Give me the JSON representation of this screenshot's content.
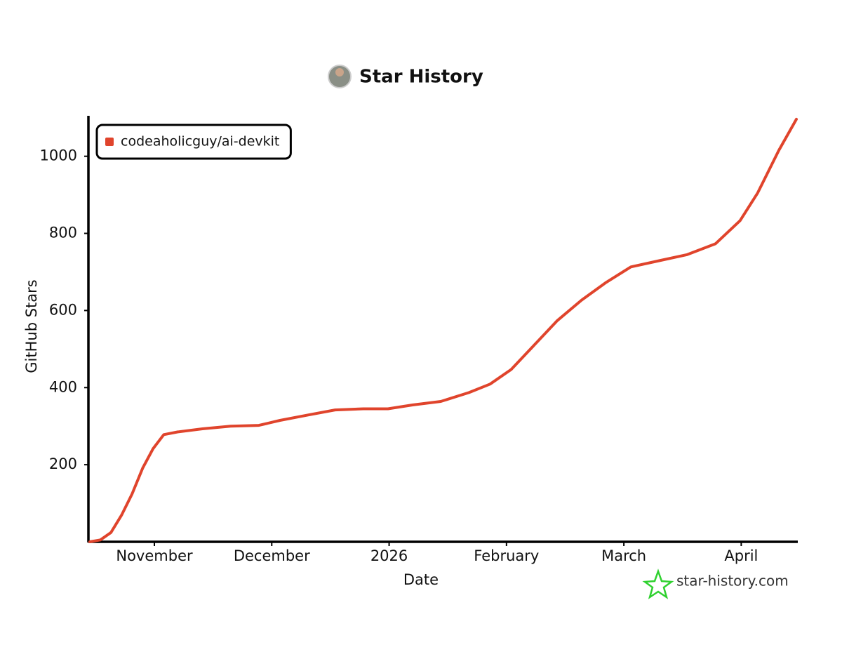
{
  "chart_data": {
    "type": "line",
    "title": "Star History",
    "x_label": "Date",
    "y_label": "GitHub Stars",
    "x": [
      10.45,
      10.54,
      10.63,
      10.72,
      10.81,
      10.9,
      10.99,
      11.08,
      11.2,
      11.41,
      11.65,
      11.89,
      12.07,
      12.31,
      12.54,
      12.78,
      12.99,
      13.2,
      13.44,
      13.68,
      13.86,
      14.04,
      14.22,
      14.43,
      14.64,
      14.85,
      15.06,
      15.3,
      15.54,
      15.78,
      15.99,
      16.14,
      16.32,
      16.47
    ],
    "series": [
      {
        "name": "codeaholicguy/ai-devkit",
        "color": "#e0442c",
        "values": [
          0,
          5,
          24,
          69,
          124,
          191,
          242,
          278,
          285,
          293,
          300,
          302,
          315,
          329,
          342,
          345,
          345,
          355,
          364,
          387,
          409,
          447,
          505,
          573,
          627,
          673,
          713,
          729,
          745,
          773,
          833,
          905,
          1015,
          1096
        ]
      }
    ],
    "xlim": [
      10.45,
      16.47
    ],
    "xticks": [
      {
        "value": 11,
        "label": "November"
      },
      {
        "value": 12,
        "label": "December"
      },
      {
        "value": 13,
        "label": "2026"
      },
      {
        "value": 14,
        "label": "February"
      },
      {
        "value": 15,
        "label": "March"
      },
      {
        "value": 16,
        "label": "April"
      }
    ],
    "ylim": [
      0,
      1105
    ],
    "yticks": [
      200,
      400,
      600,
      800,
      1000
    ],
    "grid": false,
    "legend": "upper-left",
    "watermark": "star-history.com"
  }
}
